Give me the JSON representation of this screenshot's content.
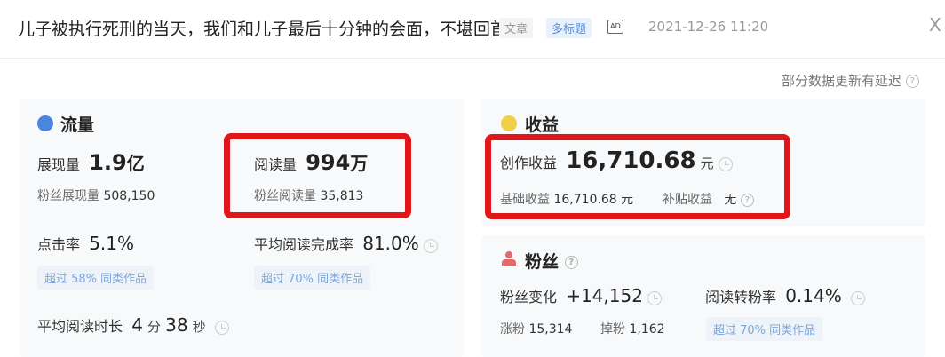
{
  "header": {
    "title": "儿子被执行死刑的当天，我们和儿子最后十分钟的会面，不堪回首",
    "tag_type": "文章",
    "tag_multi": "多标题",
    "ad_badge": "AD",
    "date": "2021-12-26 11:20",
    "close": "X"
  },
  "notice": "部分数据更新有延迟",
  "traffic": {
    "title": "流量",
    "impressions_label": "展现量",
    "impressions_value": "1.9",
    "impressions_unit": "亿",
    "fan_impressions_label": "粉丝展现量",
    "fan_impressions_value": "508,150",
    "reads_label": "阅读量",
    "reads_value": "994",
    "reads_unit": "万",
    "fan_reads_label": "粉丝阅读量",
    "fan_reads_value": "35,813",
    "ctr_label": "点击率",
    "ctr_value": "5.1%",
    "ctr_badge": "超过 58% 同类作品",
    "completion_label": "平均阅读完成率",
    "completion_value": "81.0%",
    "completion_badge": "超过 70% 同类作品",
    "duration_label": "平均阅读时长",
    "duration_min": "4",
    "duration_min_unit": "分",
    "duration_sec": "38",
    "duration_sec_unit": "秒"
  },
  "income": {
    "title": "收益",
    "creation_label": "创作收益",
    "creation_value": "16,710.68",
    "creation_unit": "元",
    "base_label": "基础收益",
    "base_value": "16,710.68 元",
    "subsidy_label": "补贴收益",
    "subsidy_value": "无"
  },
  "fans": {
    "title": "粉丝",
    "change_label": "粉丝变化",
    "change_value": "+14,152",
    "conv_label": "阅读转粉率",
    "conv_value": "0.14%",
    "gain_label": "涨粉",
    "gain_value": "15,314",
    "loss_label": "掉粉",
    "loss_value": "1,162",
    "conv_badge": "超过 70% 同类作品"
  },
  "colors": {
    "highlight": "#e0161b",
    "accent": "#5b8fd6"
  }
}
